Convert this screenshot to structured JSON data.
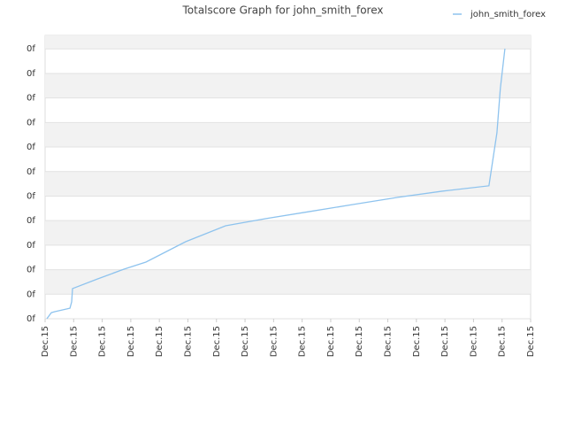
{
  "chart_data": {
    "type": "line",
    "title": "Totalscore Graph for john_smith_forex",
    "x": [
      0.06,
      0.22,
      0.34,
      0.87,
      0.93,
      0.96,
      1.83,
      2.76,
      3.53,
      4.92,
      6.32,
      7.71,
      9.26,
      10.8,
      12.35,
      13.9,
      15.54,
      15.82,
      15.94,
      16.1
    ],
    "series": [
      {
        "name": "john_smith_forex",
        "color": "#8ec3ee",
        "values": [
          0,
          0.25,
          0.29,
          0.43,
          0.69,
          1.23,
          1.62,
          2.02,
          2.31,
          3.14,
          3.79,
          4.08,
          4.37,
          4.66,
          4.95,
          5.2,
          5.42,
          7.58,
          9.39,
          11.01
        ]
      }
    ],
    "xlim": [
      0,
      17
    ],
    "xticks": [
      {
        "value": 0,
        "label": "Dec.15"
      },
      {
        "value": 1,
        "label": "Dec.15"
      },
      {
        "value": 2,
        "label": "Dec.15"
      },
      {
        "value": 3,
        "label": "Dec.15"
      },
      {
        "value": 4,
        "label": "Dec.15"
      },
      {
        "value": 5,
        "label": "Dec.15"
      },
      {
        "value": 6,
        "label": "Dec.15"
      },
      {
        "value": 7,
        "label": "Dec.15"
      },
      {
        "value": 8,
        "label": "Dec.15"
      },
      {
        "value": 9,
        "label": "Dec.15"
      },
      {
        "value": 10,
        "label": "Dec.15"
      },
      {
        "value": 11,
        "label": "Dec.15"
      },
      {
        "value": 12,
        "label": "Dec.15"
      },
      {
        "value": 13,
        "label": "Dec.15"
      },
      {
        "value": 14,
        "label": "Dec.15"
      },
      {
        "value": 15,
        "label": "Dec.15"
      },
      {
        "value": 16,
        "label": "Dec.15"
      },
      {
        "value": 17,
        "label": "Dec.15"
      }
    ],
    "ylim": [
      0,
      11.55
    ],
    "yticks": [
      {
        "value": 0,
        "label": "0f"
      },
      {
        "value": 1,
        "label": "0f"
      },
      {
        "value": 2,
        "label": "0f"
      },
      {
        "value": 3,
        "label": "0f"
      },
      {
        "value": 4,
        "label": "0f"
      },
      {
        "value": 5,
        "label": "0f"
      },
      {
        "value": 6,
        "label": "0f"
      },
      {
        "value": 7,
        "label": "0f"
      },
      {
        "value": 8,
        "label": "0f"
      },
      {
        "value": 9,
        "label": "0f"
      },
      {
        "value": 10,
        "label": "0f"
      },
      {
        "value": 11,
        "label": "0f"
      }
    ],
    "grid": true
  }
}
